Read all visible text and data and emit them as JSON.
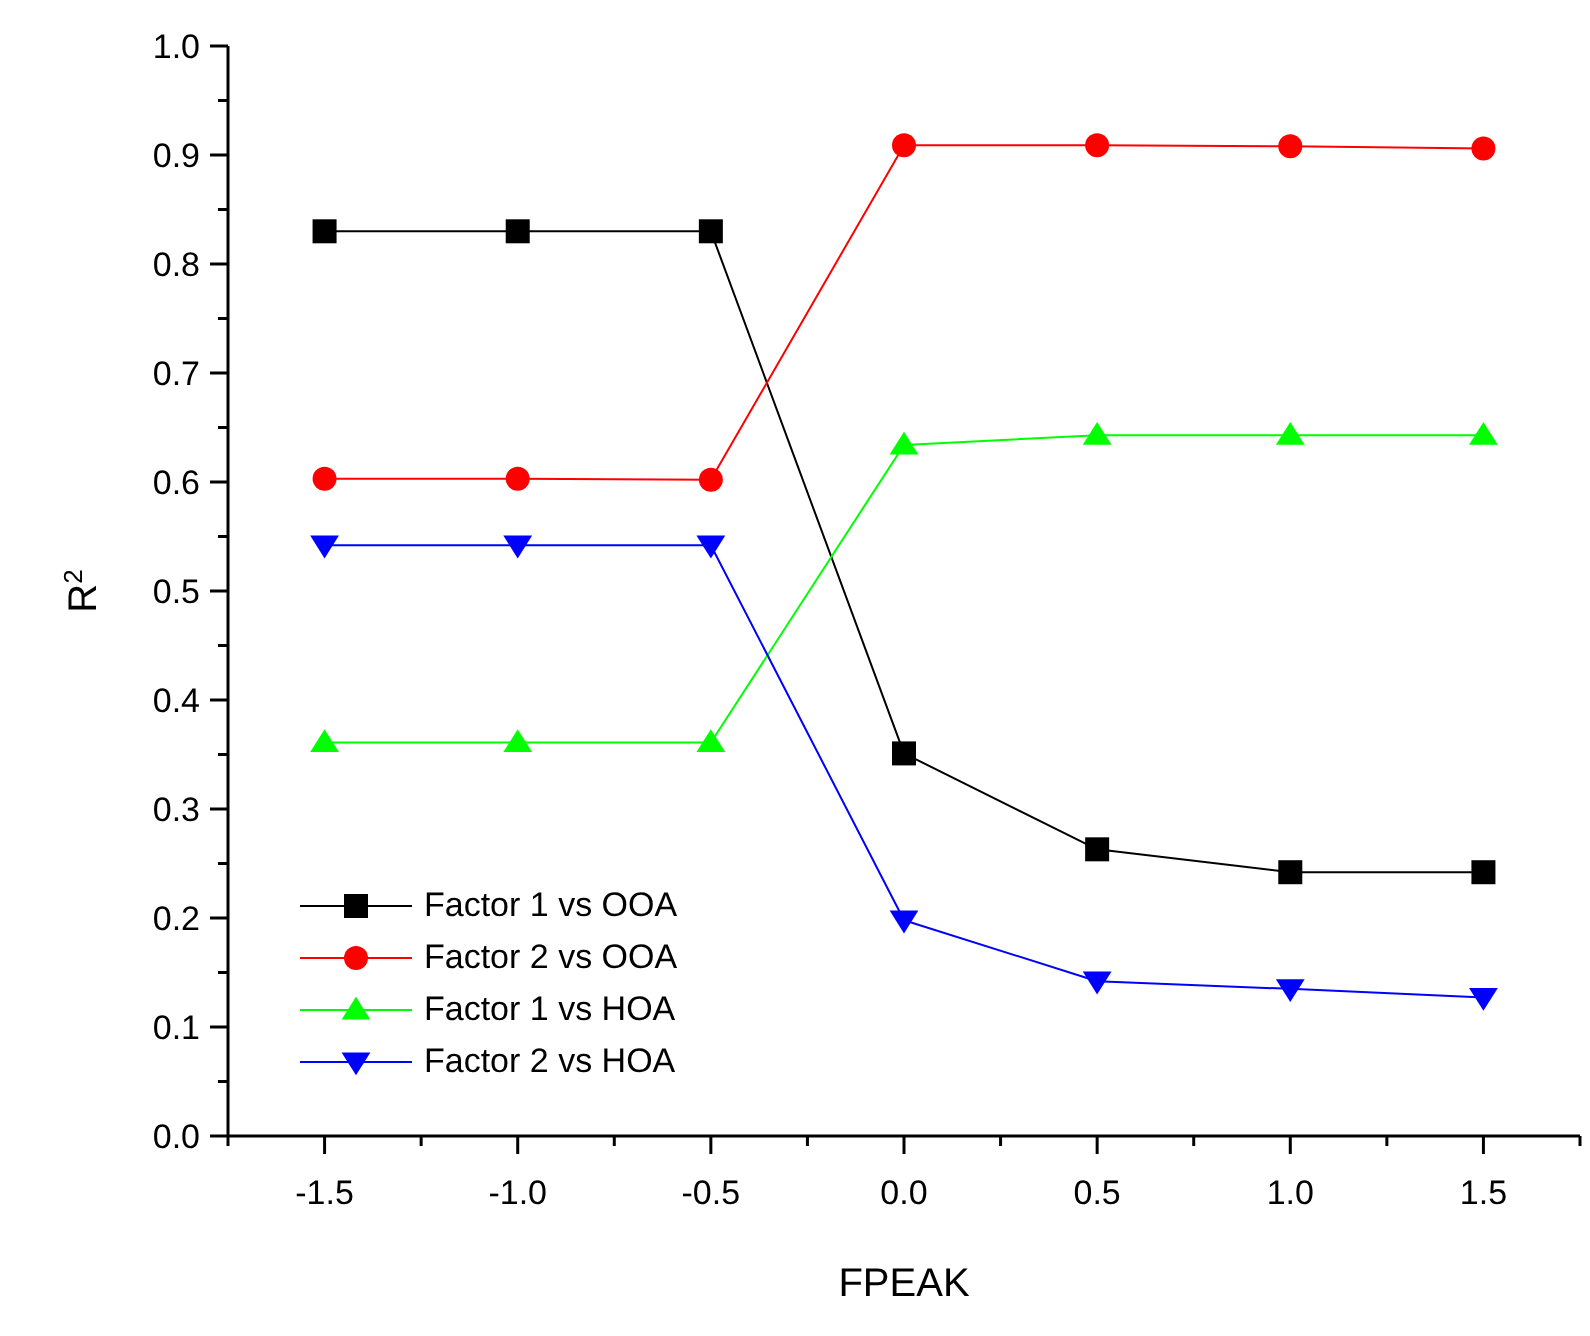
{
  "chart_data": {
    "type": "line",
    "xlabel": "FPEAK",
    "ylabel": "R$^{2}$",
    "x": [
      -1.5,
      -1.0,
      -0.5,
      0.0,
      0.5,
      1.0,
      1.5
    ],
    "series": [
      {
        "name": "Factor 1 vs OOA",
        "color": "#000000",
        "marker": "square",
        "values": [
          0.83,
          0.83,
          0.83,
          0.351,
          0.263,
          0.242,
          0.242
        ]
      },
      {
        "name": "Factor 2 vs OOA",
        "color": "#ff0000",
        "marker": "circle",
        "values": [
          0.603,
          0.603,
          0.602,
          0.909,
          0.909,
          0.908,
          0.906
        ]
      },
      {
        "name": "Factor 1 vs HOA",
        "color": "#00ff00",
        "marker": "triangle",
        "values": [
          0.361,
          0.361,
          0.361,
          0.634,
          0.643,
          0.643,
          0.643
        ]
      },
      {
        "name": "Factor 2 vs HOA",
        "color": "#0000ff",
        "marker": "triangle-down",
        "values": [
          0.542,
          0.542,
          0.542,
          0.198,
          0.142,
          0.135,
          0.127
        ]
      }
    ],
    "xlim": [
      -1.75,
      1.75
    ],
    "xticks": [
      {
        "value": -1.75,
        "label": null
      },
      {
        "value": -1.5,
        "label": "-1.5"
      },
      {
        "value": -1.25,
        "label": null
      },
      {
        "value": -1.0,
        "label": "-1.0"
      },
      {
        "value": -0.75,
        "label": null
      },
      {
        "value": -0.5,
        "label": "-0.5"
      },
      {
        "value": -0.25,
        "label": null
      },
      {
        "value": 0,
        "label": "0.0"
      },
      {
        "value": 0.25,
        "label": null
      },
      {
        "value": 0.5,
        "label": "0.5"
      },
      {
        "value": 0.75,
        "label": null
      },
      {
        "value": 1.0,
        "label": "1.0"
      },
      {
        "value": 1.25,
        "label": null
      },
      {
        "value": 1.5,
        "label": "1.5"
      },
      {
        "value": 1.75,
        "label": null
      }
    ],
    "ylim": [
      0,
      1
    ],
    "yticks": [
      {
        "value": 0,
        "label": "0.0"
      },
      {
        "value": 0.05,
        "label": null
      },
      {
        "value": 0.1,
        "label": "0.1"
      },
      {
        "value": 0.15,
        "label": null
      },
      {
        "value": 0.2,
        "label": "0.2"
      },
      {
        "value": 0.25,
        "label": null
      },
      {
        "value": 0.3,
        "label": "0.3"
      },
      {
        "value": 0.35,
        "label": null
      },
      {
        "value": 0.4,
        "label": "0.4"
      },
      {
        "value": 0.45,
        "label": null
      },
      {
        "value": 0.5,
        "label": "0.5"
      },
      {
        "value": 0.55,
        "label": null
      },
      {
        "value": 0.6,
        "label": "0.6"
      },
      {
        "value": 0.65,
        "label": null
      },
      {
        "value": 0.7,
        "label": "0.7"
      },
      {
        "value": 0.75,
        "label": null
      },
      {
        "value": 0.8,
        "label": "0.8"
      },
      {
        "value": 0.85,
        "label": null
      },
      {
        "value": 0.9,
        "label": "0.9"
      },
      {
        "value": 0.95,
        "label": null
      },
      {
        "value": 1.0,
        "label": "1.0"
      }
    ],
    "legend": "bottom left",
    "grid": false,
    "line_style": "solid"
  }
}
